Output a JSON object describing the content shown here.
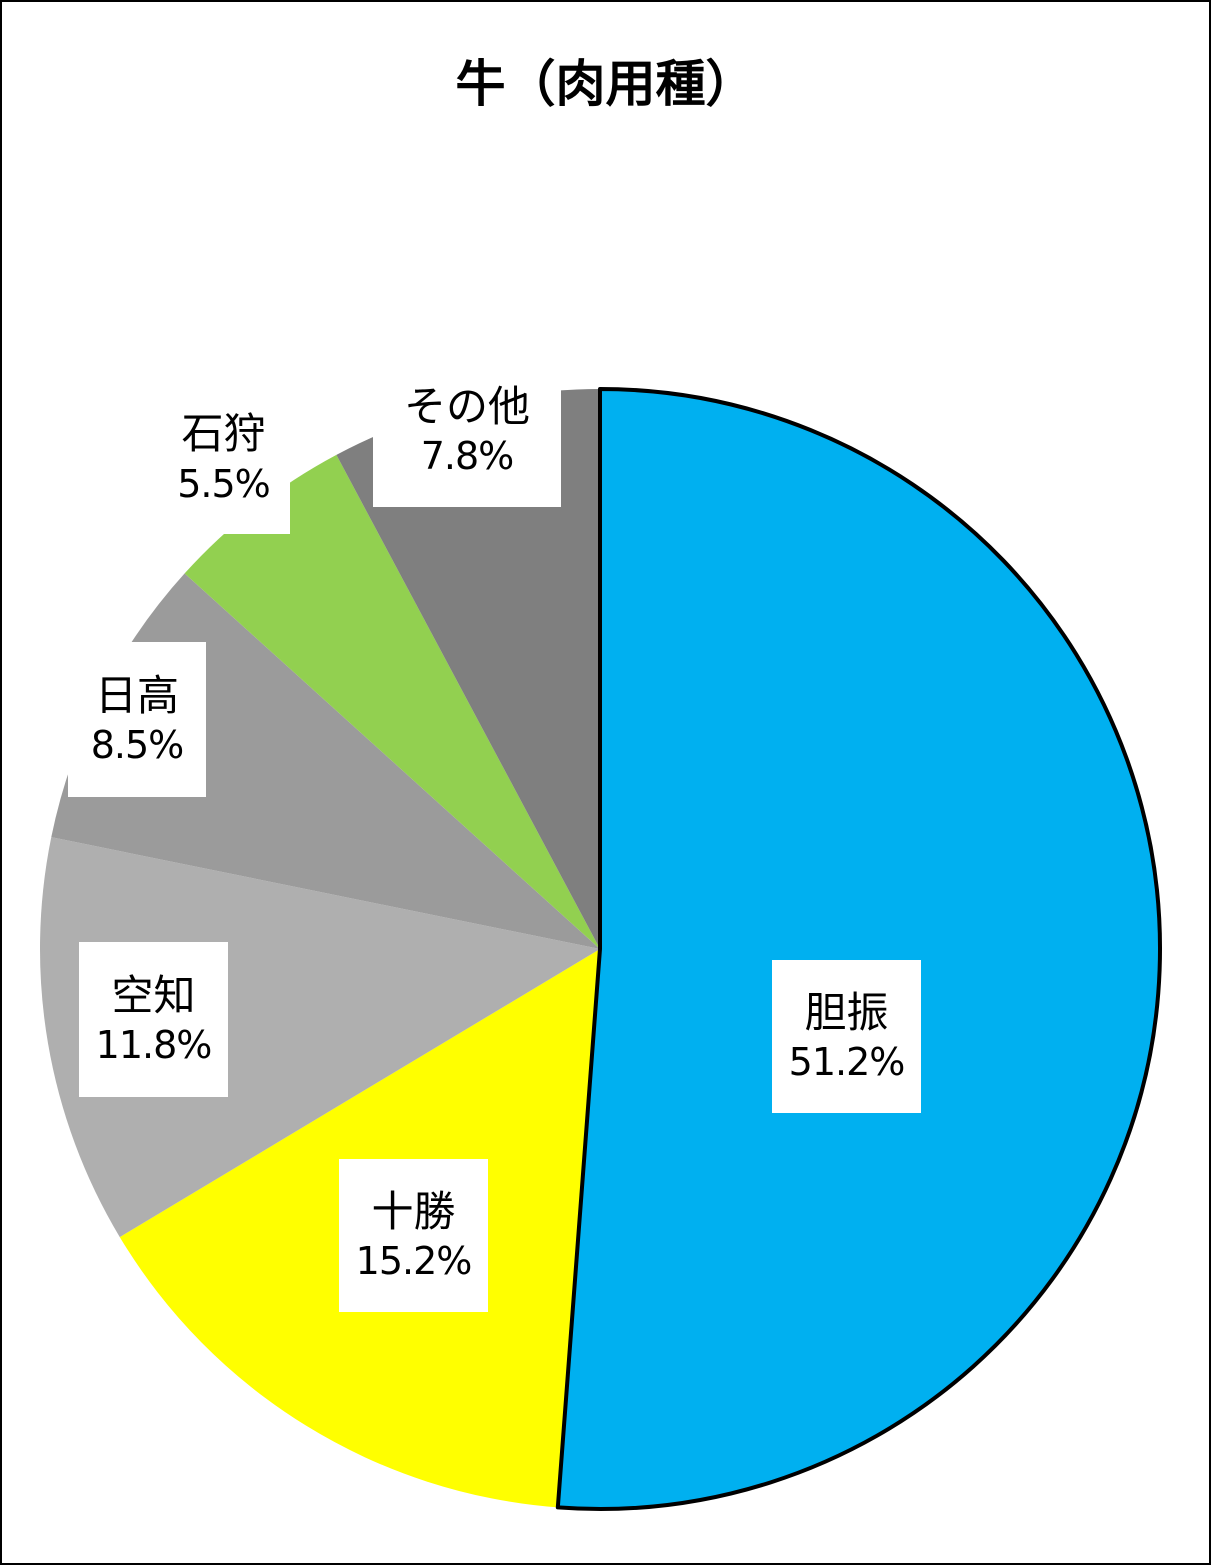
{
  "chart_data": {
    "type": "pie",
    "title": "牛（肉用種）",
    "slices": [
      {
        "label": "胆振",
        "value": 51.2,
        "value_label": "51.2%",
        "color": "#00B0F0",
        "outlined": true
      },
      {
        "label": "十勝",
        "value": 15.2,
        "value_label": "15.2%",
        "color": "#FFFF00"
      },
      {
        "label": "空知",
        "value": 11.8,
        "value_label": "11.8%",
        "color": "#AFAFAF"
      },
      {
        "label": "日高",
        "value": 8.5,
        "value_label": "8.5%",
        "color": "#9B9B9B"
      },
      {
        "label": "石狩",
        "value": 5.5,
        "value_label": "5.5%",
        "color": "#92D050"
      },
      {
        "label": "その他",
        "value": 7.8,
        "value_label": "7.8%",
        "color": "#7F7F7F"
      }
    ],
    "start_angle": "12 o'clock",
    "direction": "clockwise",
    "legend": "none"
  }
}
